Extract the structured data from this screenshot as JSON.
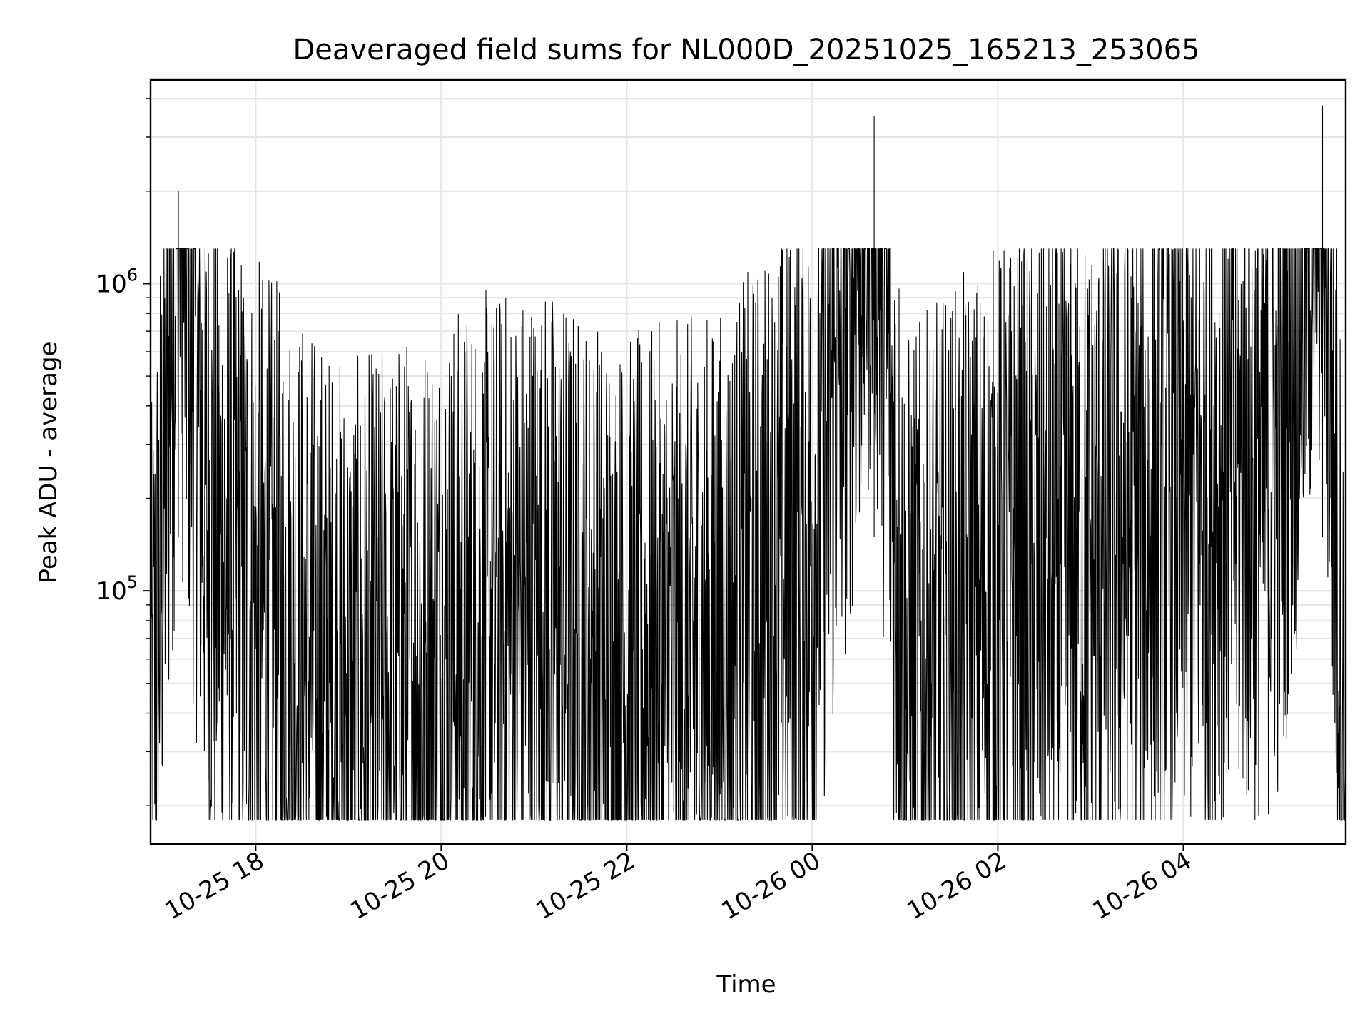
{
  "chart_data": {
    "type": "line",
    "title": "Deaveraged field sums for NL000D_20251025_165213_253065",
    "xlabel": "Time",
    "ylabel": "Peak ADU - average",
    "y_scale": "log",
    "ylim": [
      15000,
      4600000
    ],
    "xlim": [
      "2025-10-25 16:52",
      "2025-10-26 05:45"
    ],
    "grid": true,
    "line_color": "#000000",
    "x_ticks": [
      {
        "value": "2025-10-25 18:00",
        "label": "10-25 18"
      },
      {
        "value": "2025-10-25 20:00",
        "label": "10-25 20"
      },
      {
        "value": "2025-10-25 22:00",
        "label": "10-25 22"
      },
      {
        "value": "2025-10-26 00:00",
        "label": "10-26 00"
      },
      {
        "value": "2025-10-26 02:00",
        "label": "10-26 02"
      },
      {
        "value": "2025-10-26 04:00",
        "label": "10-26 04"
      }
    ],
    "y_ticks": [
      {
        "value": 100000,
        "base": "10",
        "exp": "5"
      },
      {
        "value": 1000000,
        "base": "10",
        "exp": "6"
      }
    ],
    "series": [
      {
        "values_sampled_hourly": [
          {
            "x": "2025-10-25 16:52",
            "y": 25000
          },
          {
            "x": "2025-10-25 17:10",
            "y": 2000000
          },
          {
            "x": "2025-10-25 17:30",
            "y": 150000
          },
          {
            "x": "2025-10-25 18:00",
            "y": 90000
          },
          {
            "x": "2025-10-25 19:00",
            "y": 40000
          },
          {
            "x": "2025-10-25 20:00",
            "y": 60000
          },
          {
            "x": "2025-10-25 21:00",
            "y": 80000
          },
          {
            "x": "2025-10-25 22:00",
            "y": 50000
          },
          {
            "x": "2025-10-25 23:00",
            "y": 60000
          },
          {
            "x": "2025-10-26 00:00",
            "y": 150000
          },
          {
            "x": "2025-10-26 00:40",
            "y": 3500000
          },
          {
            "x": "2025-10-26 01:00",
            "y": 50000
          },
          {
            "x": "2025-10-26 02:00",
            "y": 100000
          },
          {
            "x": "2025-10-26 03:00",
            "y": 120000
          },
          {
            "x": "2025-10-26 04:00",
            "y": 200000
          },
          {
            "x": "2025-10-26 05:00",
            "y": 250000
          },
          {
            "x": "2025-10-26 05:30",
            "y": 3800000
          },
          {
            "x": "2025-10-26 05:45",
            "y": 18000
          }
        ]
      }
    ]
  }
}
